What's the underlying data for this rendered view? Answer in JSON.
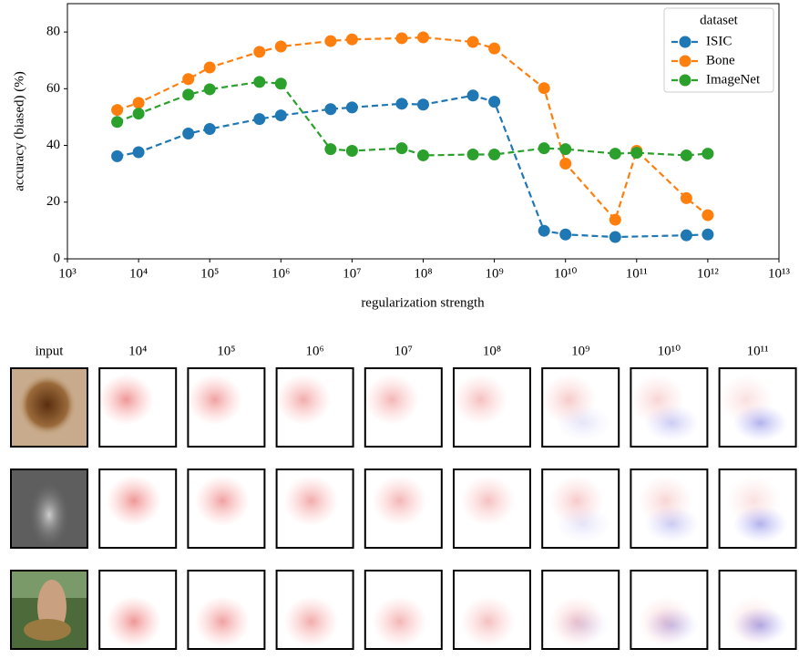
{
  "chart_data": {
    "type": "line",
    "title": null,
    "xlabel": "regularization strength",
    "ylabel": "accuracy (biased) (%)",
    "xscale": "log",
    "xlim": [
      1000,
      10000000000000
    ],
    "ylim": [
      0,
      90
    ],
    "xticks": [
      {
        "value": 1000,
        "label": "10³"
      },
      {
        "value": 10000,
        "label": "10⁴"
      },
      {
        "value": 100000,
        "label": "10⁵"
      },
      {
        "value": 1000000,
        "label": "10⁶"
      },
      {
        "value": 10000000,
        "label": "10⁷"
      },
      {
        "value": 100000000,
        "label": "10⁸"
      },
      {
        "value": 1000000000,
        "label": "10⁹"
      },
      {
        "value": 10000000000,
        "label": "10¹⁰"
      },
      {
        "value": 100000000000,
        "label": "10¹¹"
      },
      {
        "value": 1000000000000,
        "label": "10¹²"
      },
      {
        "value": 10000000000000,
        "label": "10¹³"
      }
    ],
    "yticks": [
      0,
      20,
      40,
      60,
      80
    ],
    "legend_title": "dataset",
    "legend_position": "upper right",
    "line_style": "dashed",
    "series": [
      {
        "name": "ISIC",
        "color": "#1f77b4",
        "x": [
          5000,
          10000,
          50000,
          100000,
          500000,
          1000000,
          5000000,
          10000000,
          50000000,
          100000000,
          500000000,
          1000000000,
          5000000000,
          10000000000,
          50000000000,
          500000000000,
          1000000000000
        ],
        "values": [
          36.2,
          37.6,
          44.2,
          45.8,
          49.3,
          50.6,
          52.8,
          53.4,
          54.7,
          54.4,
          57.6,
          55.4,
          9.9,
          8.6,
          7.7,
          8.3,
          8.6
        ]
      },
      {
        "name": "Bone",
        "color": "#ff7f0e",
        "x": [
          5000,
          10000,
          50000,
          100000,
          500000,
          1000000,
          5000000,
          10000000,
          50000000,
          100000000,
          500000000,
          1000000000,
          5000000000,
          10000000000,
          50000000000,
          100000000000,
          500000000000,
          1000000000000
        ],
        "values": [
          52.5,
          55,
          63.4,
          67.5,
          73,
          74.9,
          76.8,
          77.4,
          77.8,
          78.1,
          76.5,
          74.2,
          60.2,
          33.6,
          13.8,
          38.1,
          21.4,
          15.4
        ]
      },
      {
        "name": "ImageNet",
        "color": "#2ca02c",
        "x": [
          5000,
          10000,
          50000,
          100000,
          500000,
          1000000,
          5000000,
          10000000,
          50000000,
          100000000,
          500000000,
          1000000000,
          5000000000,
          10000000000,
          50000000000,
          100000000000,
          500000000000,
          1000000000000
        ],
        "values": [
          48.3,
          51.2,
          57.9,
          59.8,
          62.4,
          61.8,
          38.7,
          38.1,
          39,
          36.5,
          36.8,
          36.8,
          39,
          38.7,
          37.1,
          37.4,
          36.5,
          37.1
        ]
      }
    ]
  },
  "grid": {
    "column_labels": [
      "input",
      "10⁴",
      "10⁵",
      "10⁶",
      "10⁷",
      "10⁸",
      "10⁹",
      "10¹⁰",
      "10¹¹"
    ]
  }
}
